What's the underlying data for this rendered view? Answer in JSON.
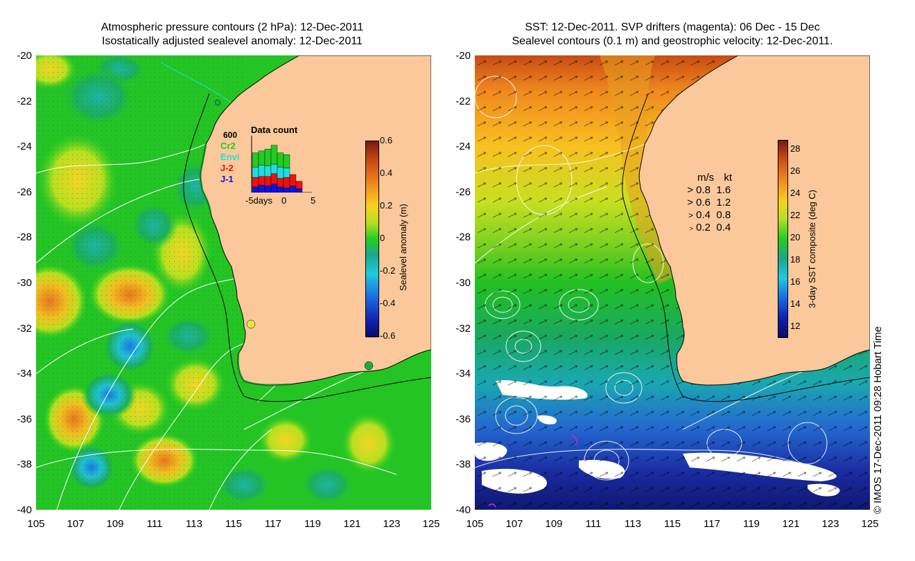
{
  "left_panel": {
    "title_line1": "Atmospheric pressure contours (2 hPa): 12-Dec-2011",
    "title_line2": "Isostatically adjusted sealevel anomaly: 12-Dec-2011",
    "colorbar": {
      "label": "Sealevel anomaly (m)",
      "ticks": [
        "0.6",
        "0.4",
        "0.2",
        "0",
        "-0.2",
        "-0.4",
        "-0.6"
      ],
      "range": [
        -0.6,
        0.6
      ]
    },
    "inset": {
      "title": "Data count",
      "max_label": "600",
      "legend": [
        {
          "name": "Cr2",
          "color": "#22cc22"
        },
        {
          "name": "Envi",
          "color": "#22dddd"
        },
        {
          "name": "J-2",
          "color": "#ee1111"
        },
        {
          "name": "J-1",
          "color": "#1111dd"
        }
      ],
      "xlabel_left": "-5days",
      "xlabel_zero": "0",
      "xlabel_right": "5",
      "bars": [
        {
          "day": -5,
          "j1": 60,
          "j2": 100,
          "envi": 110,
          "cr2": 150
        },
        {
          "day": -4,
          "j1": 80,
          "j2": 90,
          "envi": 120,
          "cr2": 150
        },
        {
          "day": -3,
          "j1": 70,
          "j2": 100,
          "envi": 110,
          "cr2": 180
        },
        {
          "day": -2,
          "j1": 90,
          "j2": 110,
          "envi": 100,
          "cr2": 200
        },
        {
          "day": -1,
          "j1": 60,
          "j2": 90,
          "envi": 120,
          "cr2": 150
        },
        {
          "day": 0,
          "j1": 50,
          "j2": 110,
          "envi": 100,
          "cr2": 140
        },
        {
          "day": 1,
          "j1": 70,
          "j2": 120,
          "envi": 0,
          "cr2": 0
        },
        {
          "day": 2,
          "j1": 40,
          "j2": 80,
          "envi": 0,
          "cr2": 0
        }
      ]
    }
  },
  "right_panel": {
    "title_line1": "SST: 12-Dec-2011. SVP drifters (magenta): 06 Dec - 15 Dec",
    "title_line2": "Sealevel contours (0.1 m) and geostrophic velocity: 12-Dec-2011.",
    "colorbar": {
      "label": "3-day SST composite (deg C)",
      "ticks": [
        "28",
        "26",
        "24",
        "22",
        "20",
        "18",
        "16",
        "14",
        "12"
      ],
      "range": [
        11,
        29.5
      ]
    },
    "velocity_legend": {
      "header_ms": "m/s",
      "header_kt": "kt",
      "rows": [
        {
          "ms": "0.8",
          "kt": "1.6"
        },
        {
          "ms": "0.6",
          "kt": "1.2"
        },
        {
          "ms": "0.4",
          "kt": "0.8"
        },
        {
          "ms": "0.2",
          "kt": "0.4"
        }
      ]
    }
  },
  "axes": {
    "lat_ticks": [
      "-20",
      "-22",
      "-24",
      "-26",
      "-28",
      "-30",
      "-32",
      "-34",
      "-36",
      "-38",
      "-40"
    ],
    "lon_ticks": [
      "105",
      "107",
      "109",
      "111",
      "113",
      "115",
      "117",
      "119",
      "121",
      "123",
      "125"
    ]
  },
  "credit": "© IMOS 17-Dec-2011 09:28 Hobart Time",
  "colors": {
    "land": "#fac89a",
    "coast": "#000000",
    "contour": "#ffffff",
    "cyan_contour": "#22dddd",
    "sla_background": "#22cc22",
    "sst_warm": "#cc3a1a",
    "sst_cool": "#2233aa"
  }
}
